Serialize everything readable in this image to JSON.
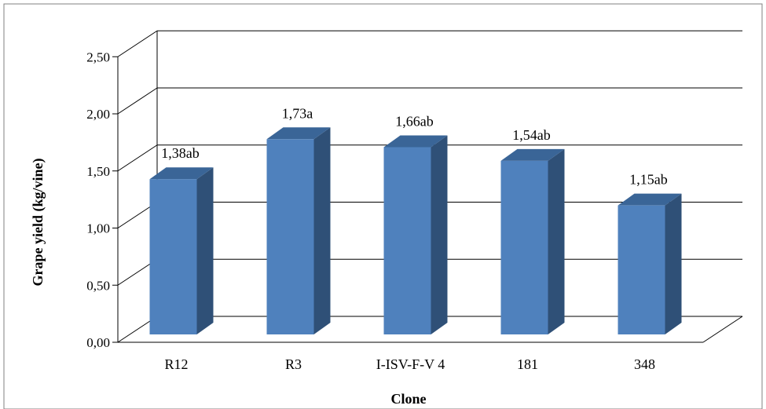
{
  "chart_data": {
    "type": "bar",
    "title": "",
    "xlabel": "Clone",
    "ylabel": "Grape yield (kg/vine)",
    "categories": [
      "R12",
      "R3",
      "I-ISV-F-V 4",
      "181",
      "348"
    ],
    "values": [
      1.38,
      1.73,
      1.66,
      1.54,
      1.15
    ],
    "data_labels": [
      "1,38ab",
      "1,73a",
      "1,66ab",
      "1,54ab",
      "1,15ab"
    ],
    "ylim": [
      0,
      2.5
    ],
    "yticks": [
      "0,00",
      "0,50",
      "1,00",
      "1,50",
      "2,00",
      "2,50"
    ],
    "grid": true,
    "style_3d": true,
    "colors": {
      "bar_front": "#4f81bd",
      "bar_side": "#2f5077",
      "bar_top": "#3a6597",
      "grid": "#000000"
    }
  }
}
